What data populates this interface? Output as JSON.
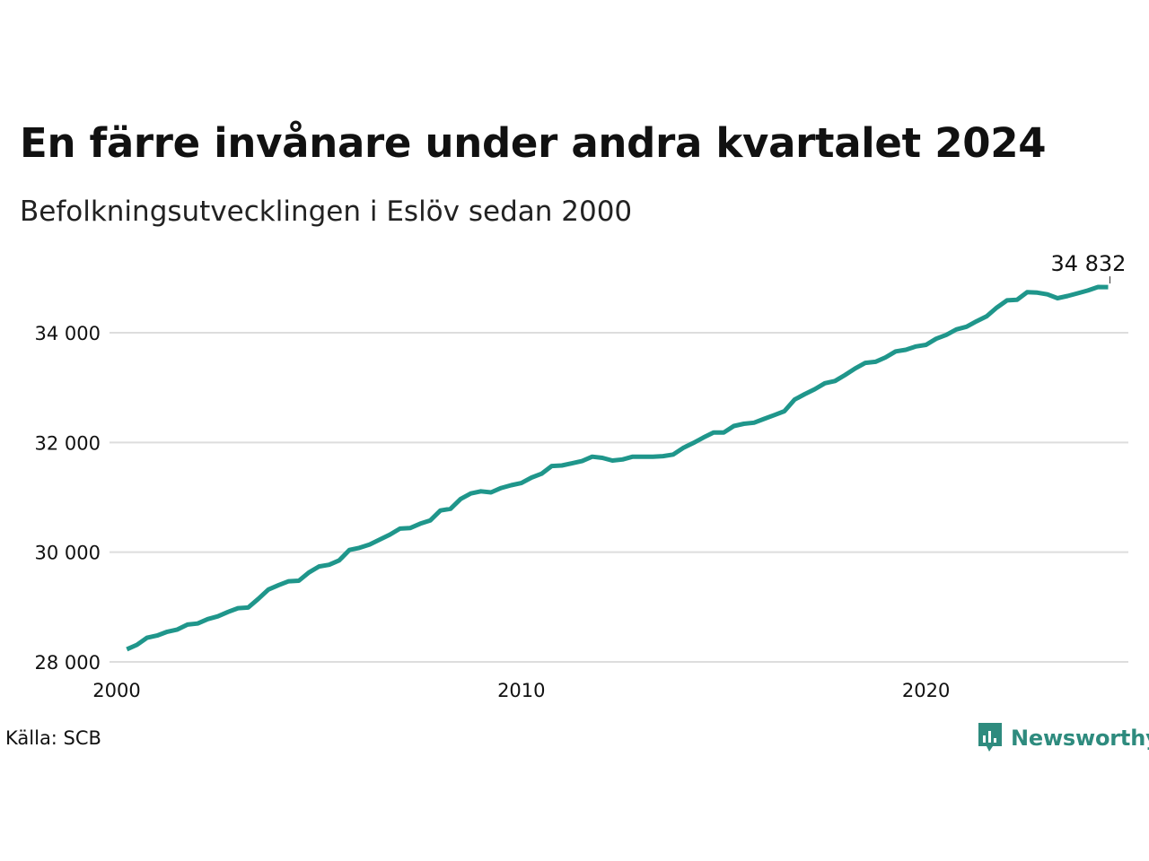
{
  "title": "En färre invånare under andra kvartalet 2024",
  "subtitle": "Befolkningsutvecklingen i Eslöv sedan 2000",
  "source": "Källa: SCB",
  "brand": {
    "name": "Newsworthy",
    "icon": "bar-chart-speech-bubble-icon",
    "color": "#2e8b7e"
  },
  "colors": {
    "line": "#1f968b",
    "grid": "#dddddd",
    "text": "#111111"
  },
  "chart_data": {
    "type": "line",
    "title": "En färre invånare under andra kvartalet 2024",
    "subtitle": "Befolkningsutvecklingen i Eslöv sedan 2000",
    "xlabel": "",
    "ylabel": "",
    "xlim": [
      2000.0,
      2025.0
    ],
    "ylim": [
      28000,
      35500
    ],
    "x_ticks": [
      {
        "value": 2000,
        "label": "2000"
      },
      {
        "value": 2010,
        "label": "2010"
      },
      {
        "value": 2020,
        "label": "2020"
      }
    ],
    "y_ticks": [
      {
        "value": 28000,
        "label": "28 000"
      },
      {
        "value": 30000,
        "label": "30 000"
      },
      {
        "value": 32000,
        "label": "32 000"
      },
      {
        "value": 34000,
        "label": "34 000"
      }
    ],
    "grid": true,
    "end_label": "34 832",
    "series": [
      {
        "x": [
          2000.25,
          2000.5,
          2000.75,
          2001.0,
          2001.25,
          2001.5,
          2001.75,
          2002.0,
          2002.25,
          2002.5,
          2002.75,
          2003.0,
          2003.25,
          2003.5,
          2003.75,
          2004.0,
          2004.25,
          2004.5,
          2004.75,
          2005.0,
          2005.25,
          2005.5,
          2005.75,
          2006.0,
          2006.25,
          2006.5,
          2006.75,
          2007.0,
          2007.25,
          2007.5,
          2007.75,
          2008.0,
          2008.25,
          2008.5,
          2008.75,
          2009.0,
          2009.25,
          2009.5,
          2009.75,
          2010.0,
          2010.25,
          2010.5,
          2010.75,
          2011.0,
          2011.25,
          2011.5,
          2011.75,
          2012.0,
          2012.25,
          2012.5,
          2012.75,
          2013.0,
          2013.25,
          2013.5,
          2013.75,
          2014.0,
          2014.25,
          2014.5,
          2014.75,
          2015.0,
          2015.25,
          2015.5,
          2015.75,
          2016.0,
          2016.25,
          2016.5,
          2016.75,
          2017.0,
          2017.25,
          2017.5,
          2017.75,
          2018.0,
          2018.25,
          2018.5,
          2018.75,
          2019.0,
          2019.25,
          2019.5,
          2019.75,
          2020.0,
          2020.25,
          2020.5,
          2020.75,
          2021.0,
          2021.25,
          2021.5,
          2021.75,
          2022.0,
          2022.25,
          2022.5,
          2022.75,
          2023.0,
          2023.25,
          2023.5,
          2023.75,
          2024.0,
          2024.25,
          2024.5
        ],
        "values": [
          28230,
          28310,
          28440,
          28480,
          28550,
          28590,
          28680,
          28700,
          28780,
          28830,
          28910,
          28980,
          28990,
          29150,
          29320,
          29400,
          29470,
          29480,
          29630,
          29740,
          29770,
          29850,
          30040,
          30080,
          30140,
          30230,
          30320,
          30430,
          30440,
          30520,
          30580,
          30760,
          30790,
          30970,
          31070,
          31110,
          31090,
          31170,
          31220,
          31260,
          31360,
          31430,
          31570,
          31580,
          31620,
          31660,
          31740,
          31720,
          31670,
          31690,
          31740,
          31740,
          31740,
          31750,
          31780,
          31900,
          31990,
          32090,
          32180,
          32180,
          32300,
          32340,
          32360,
          32430,
          32500,
          32570,
          32780,
          32880,
          32970,
          33080,
          33120,
          33230,
          33350,
          33450,
          33470,
          33550,
          33660,
          33690,
          33750,
          33780,
          33890,
          33960,
          34060,
          34110,
          34210,
          34300,
          34460,
          34590,
          34600,
          34740,
          34730,
          34700,
          34630,
          34670,
          34720,
          34770,
          34833,
          34832
        ]
      }
    ]
  }
}
